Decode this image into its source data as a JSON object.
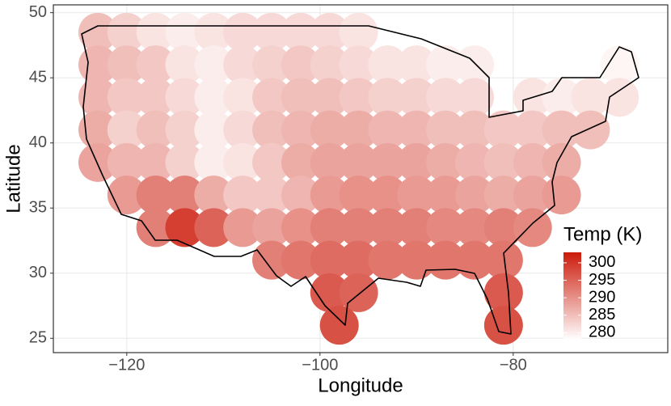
{
  "chart_data": {
    "type": "scatter",
    "x_label": "Longitude",
    "y_label": "Latitude",
    "legend_title": "Temp (K)",
    "xlim": [
      -127.6,
      -64.0
    ],
    "ylim": [
      23.9,
      50.6
    ],
    "xticks": [
      {
        "value": -120,
        "label": "−120"
      },
      {
        "value": -100,
        "label": "−100"
      },
      {
        "value": -80,
        "label": "−80"
      }
    ],
    "yticks": [
      25,
      30,
      35,
      40,
      45,
      50
    ],
    "grid": true,
    "legend_position": "right",
    "color_low": "#ffffff",
    "color_high": "#cc1a0a",
    "color_lim": [
      278,
      303
    ],
    "color_ticks": [
      280,
      285,
      290,
      295,
      300
    ],
    "x": [
      -123,
      -120,
      -117,
      -114,
      -111,
      -108,
      -105,
      -102,
      -99,
      -96,
      -123,
      -120,
      -117,
      -114,
      -111,
      -108,
      -105,
      -102,
      -99,
      -96,
      -93,
      -90,
      -87,
      -84,
      -69,
      -123,
      -120,
      -117,
      -114,
      -111,
      -108,
      -105,
      -102,
      -99,
      -96,
      -93,
      -90,
      -87,
      -84,
      -78,
      -75,
      -72,
      -69,
      -123,
      -120,
      -117,
      -114,
      -111,
      -108,
      -105,
      -102,
      -99,
      -96,
      -93,
      -90,
      -87,
      -84,
      -81,
      -78,
      -75,
      -72,
      -123,
      -120,
      -117,
      -114,
      -111,
      -108,
      -105,
      -102,
      -99,
      -96,
      -93,
      -90,
      -87,
      -84,
      -81,
      -78,
      -75,
      -120,
      -117,
      -114,
      -111,
      -108,
      -105,
      -102,
      -99,
      -96,
      -93,
      -90,
      -87,
      -84,
      -81,
      -78,
      -75,
      -117,
      -114,
      -111,
      -108,
      -105,
      -102,
      -99,
      -96,
      -93,
      -90,
      -87,
      -84,
      -81,
      -78,
      -105,
      -102,
      -99,
      -96,
      -93,
      -90,
      -87,
      -84,
      -81,
      -99,
      -96,
      -81,
      -98,
      -81
    ],
    "y": [
      48.5,
      48.5,
      48.5,
      48.5,
      48.5,
      48.5,
      48.5,
      48.5,
      48.5,
      48.5,
      46,
      46,
      46,
      46,
      46,
      46,
      46,
      46,
      46,
      46,
      46,
      46,
      46,
      46,
      46,
      43.5,
      43.5,
      43.5,
      43.5,
      43.5,
      43.5,
      43.5,
      43.5,
      43.5,
      43.5,
      43.5,
      43.5,
      43.5,
      43.5,
      43.5,
      43.5,
      43.5,
      43.5,
      41,
      41,
      41,
      41,
      41,
      41,
      41,
      41,
      41,
      41,
      41,
      41,
      41,
      41,
      41,
      41,
      41,
      41,
      38.5,
      38.5,
      38.5,
      38.5,
      38.5,
      38.5,
      38.5,
      38.5,
      38.5,
      38.5,
      38.5,
      38.5,
      38.5,
      38.5,
      38.5,
      38.5,
      38.5,
      36,
      36,
      36,
      36,
      36,
      36,
      36,
      36,
      36,
      36,
      36,
      36,
      36,
      36,
      36,
      36,
      33.5,
      33.5,
      33.5,
      33.5,
      33.5,
      33.5,
      33.5,
      33.5,
      33.5,
      33.5,
      33.5,
      33.5,
      33.5,
      33.5,
      31,
      31,
      31,
      31,
      31,
      31,
      31,
      31,
      31,
      28.5,
      28.5,
      28.5,
      26,
      26
    ],
    "values": [
      285,
      283,
      281,
      280,
      281,
      282,
      282,
      282,
      282,
      281,
      286,
      285,
      284,
      281,
      280,
      282,
      283,
      284,
      283,
      282,
      281,
      281,
      280,
      280,
      279,
      286,
      284,
      284,
      282,
      280,
      281,
      284,
      285,
      285,
      284,
      283,
      283,
      282,
      282,
      281,
      280,
      281,
      281,
      287,
      283,
      285,
      283,
      280,
      282,
      285,
      286,
      287,
      287,
      286,
      286,
      285,
      285,
      284,
      284,
      285,
      285,
      288,
      286,
      286,
      283,
      280,
      281,
      284,
      287,
      288,
      288,
      288,
      288,
      287,
      286,
      285,
      286,
      287,
      289,
      292,
      292,
      287,
      284,
      284,
      286,
      289,
      290,
      290,
      289,
      289,
      288,
      287,
      288,
      289,
      292,
      299,
      295,
      289,
      288,
      290,
      292,
      292,
      292,
      292,
      291,
      291,
      292,
      291,
      292,
      293,
      294,
      294,
      293,
      293,
      293,
      293,
      293,
      296,
      295,
      296,
      297,
      297
    ]
  }
}
